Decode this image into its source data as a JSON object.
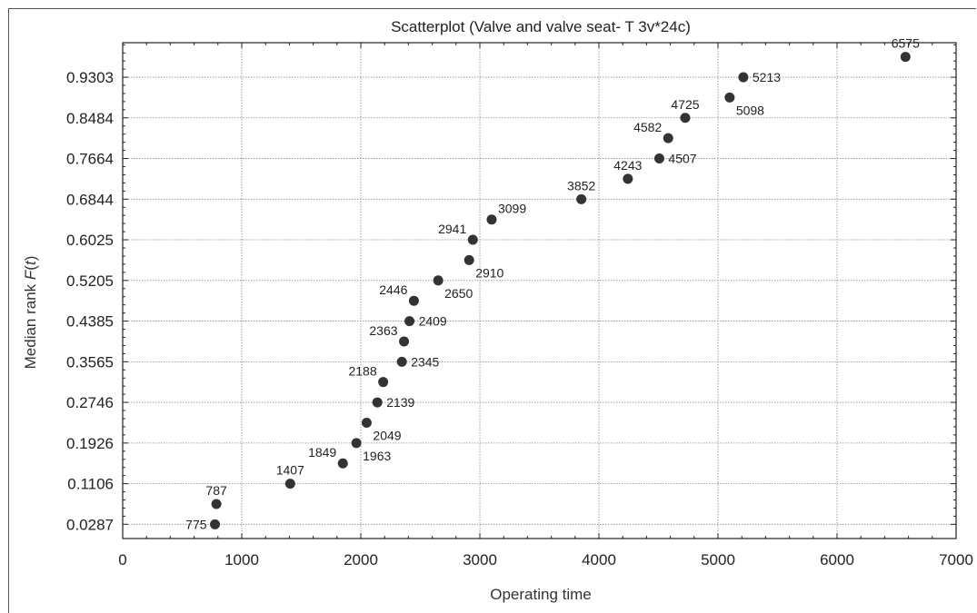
{
  "chart_data": {
    "type": "scatter",
    "title": "Scatterplot (Valve and valve seat- T 3v*24c)",
    "xlabel": "Operating time",
    "ylabel_prefix": "Median rank ",
    "ylabel_var": "F",
    "ylabel_open": "(",
    "ylabel_arg": "t",
    "ylabel_close": ")",
    "xlim": [
      0,
      7000
    ],
    "ylim": [
      0,
      1.0
    ],
    "x_ticks": [
      0,
      1000,
      2000,
      3000,
      4000,
      5000,
      6000,
      7000
    ],
    "y_ticks": [
      0.0287,
      0.1106,
      0.1926,
      0.2746,
      0.3565,
      0.4385,
      0.5205,
      0.6025,
      0.6844,
      0.7664,
      0.8484,
      0.9303
    ],
    "y_tick_labels": [
      "0.0287",
      "0.1106",
      "0.1926",
      "0.2746",
      "0.3565",
      "0.4385",
      "0.5205",
      "0.6025",
      "0.6844",
      "0.7664",
      "0.8484",
      "0.9303"
    ],
    "grid": true,
    "marker_color": "#333333",
    "points": [
      {
        "x": 775,
        "y": 0.0287,
        "label": "775",
        "pos": "left"
      },
      {
        "x": 787,
        "y": 0.0696,
        "label": "787",
        "pos": "above"
      },
      {
        "x": 1407,
        "y": 0.1106,
        "label": "1407",
        "pos": "above"
      },
      {
        "x": 1849,
        "y": 0.1516,
        "label": "1849",
        "pos": "upleft"
      },
      {
        "x": 1963,
        "y": 0.1926,
        "label": "1963",
        "pos": "lowright"
      },
      {
        "x": 2049,
        "y": 0.2336,
        "label": "2049",
        "pos": "lowright"
      },
      {
        "x": 2139,
        "y": 0.2746,
        "label": "2139",
        "pos": "right"
      },
      {
        "x": 2188,
        "y": 0.3156,
        "label": "2188",
        "pos": "upleft"
      },
      {
        "x": 2345,
        "y": 0.3565,
        "label": "2345",
        "pos": "right"
      },
      {
        "x": 2363,
        "y": 0.3975,
        "label": "2363",
        "pos": "upleft"
      },
      {
        "x": 2409,
        "y": 0.4385,
        "label": "2409",
        "pos": "right"
      },
      {
        "x": 2446,
        "y": 0.4795,
        "label": "2446",
        "pos": "upleft"
      },
      {
        "x": 2650,
        "y": 0.5205,
        "label": "2650",
        "pos": "lowright"
      },
      {
        "x": 2910,
        "y": 0.5615,
        "label": "2910",
        "pos": "lowright"
      },
      {
        "x": 2941,
        "y": 0.6025,
        "label": "2941",
        "pos": "upleft"
      },
      {
        "x": 3099,
        "y": 0.6434,
        "label": "3099",
        "pos": "upright"
      },
      {
        "x": 3852,
        "y": 0.6844,
        "label": "3852",
        "pos": "above"
      },
      {
        "x": 4243,
        "y": 0.7254,
        "label": "4243",
        "pos": "above"
      },
      {
        "x": 4507,
        "y": 0.7664,
        "label": "4507",
        "pos": "right"
      },
      {
        "x": 4582,
        "y": 0.8074,
        "label": "4582",
        "pos": "upleft"
      },
      {
        "x": 4725,
        "y": 0.8484,
        "label": "4725",
        "pos": "above"
      },
      {
        "x": 5098,
        "y": 0.8894,
        "label": "5098",
        "pos": "lowright"
      },
      {
        "x": 5213,
        "y": 0.9303,
        "label": "5213",
        "pos": "right"
      },
      {
        "x": 6575,
        "y": 0.9713,
        "label": "6575",
        "pos": "above"
      }
    ]
  }
}
